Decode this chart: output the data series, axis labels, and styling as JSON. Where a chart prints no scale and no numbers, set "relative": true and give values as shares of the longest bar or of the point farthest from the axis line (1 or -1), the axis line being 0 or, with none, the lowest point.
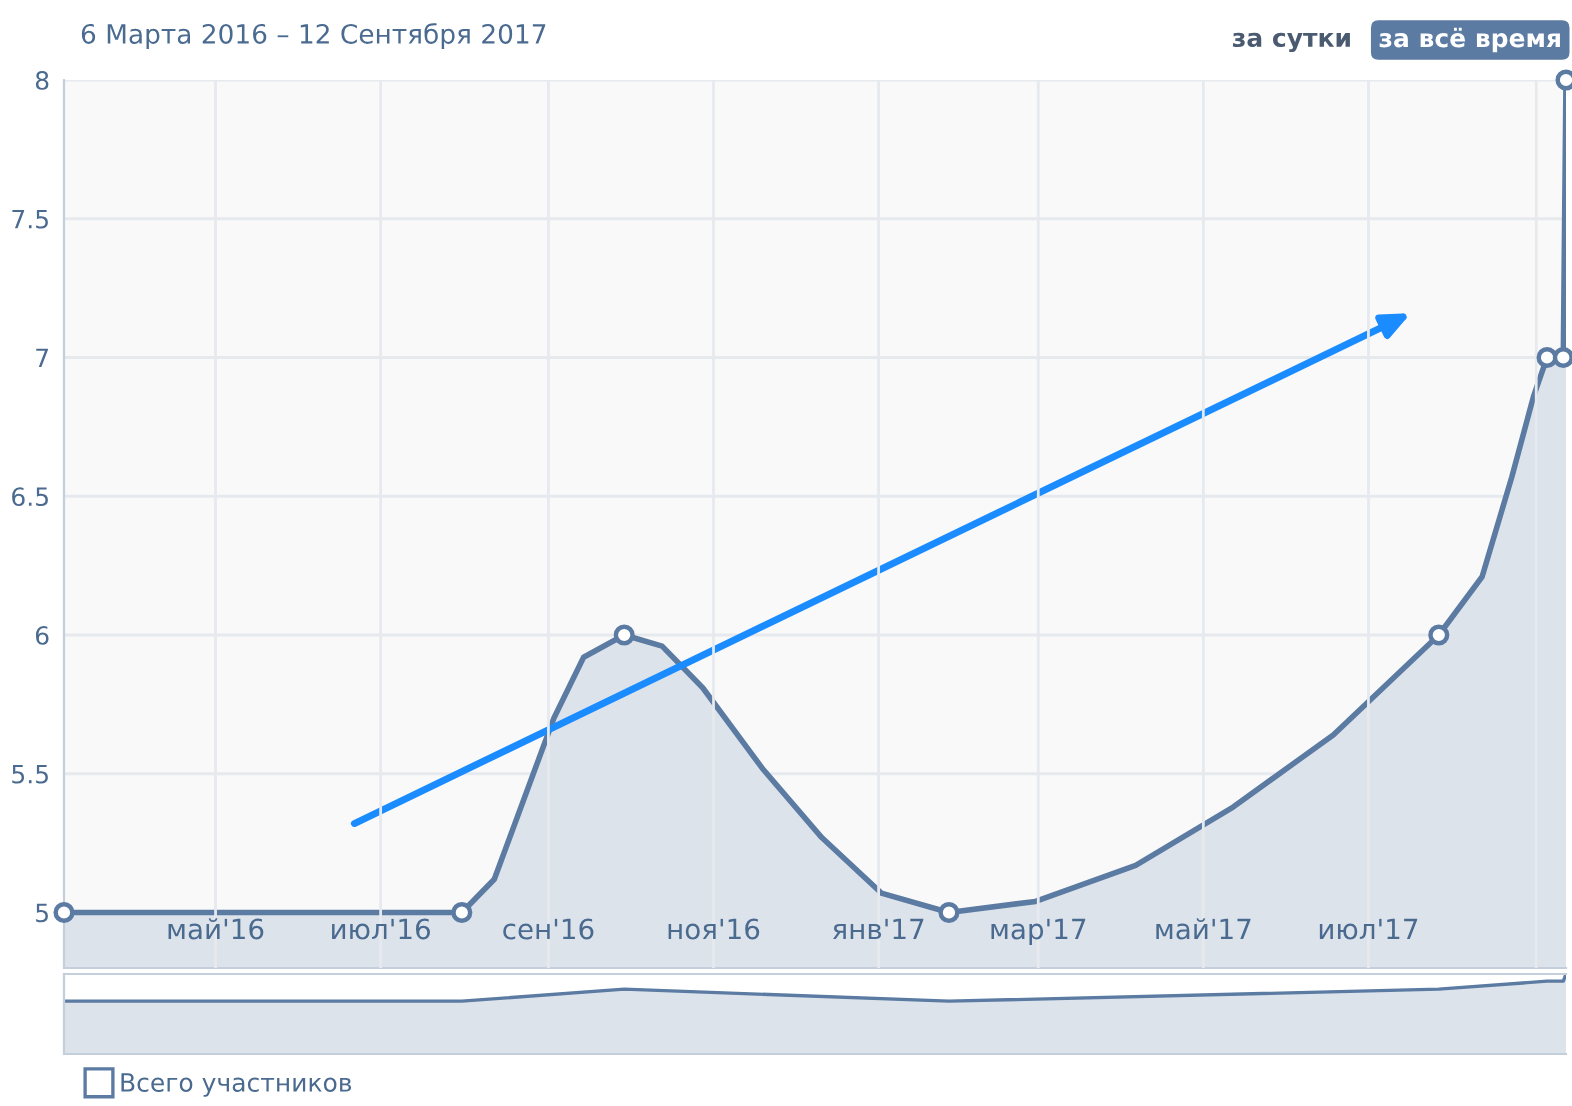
{
  "chart_data": [
    {
      "type": "area",
      "title": "6 Марта 2016 – 12 Сентября 2017",
      "annotations": [
        "за сутки",
        "за всё время"
      ],
      "series": [
        {
          "name": "Всего участников",
          "color": "#5b7ba3",
          "x": [
            "2016-03-06",
            "2016-07-31",
            "2016-08-12",
            "2016-08-23",
            "2016-09-03",
            "2016-09-14",
            "2016-09-29",
            "2016-10-13",
            "2016-10-28",
            "2016-11-19",
            "2016-12-11",
            "2017-01-02",
            "2017-01-27",
            "2017-02-28",
            "2017-04-06",
            "2017-05-12",
            "2017-06-18",
            "2017-07-27",
            "2017-08-12",
            "2017-08-23",
            "2017-08-31",
            "2017-09-05",
            "2017-09-11",
            "2017-09-12"
          ],
          "values": [
            5,
            5,
            5.12,
            5.41,
            5.7,
            5.92,
            6,
            5.96,
            5.81,
            5.52,
            5.27,
            5.07,
            5,
            5.04,
            5.17,
            5.38,
            5.64,
            6,
            6.21,
            6.57,
            6.86,
            7,
            7,
            8
          ]
        },
        {
          "type": "scatter",
          "marker": "circle",
          "color": "#5b7ba3",
          "x": [
            "2016-03-06",
            "2016-07-31",
            "2016-09-29",
            "2017-01-27",
            "2017-07-27",
            "2017-09-05",
            "2017-09-11",
            "2017-09-12"
          ],
          "values": [
            5,
            5,
            6,
            5,
            6,
            7,
            7,
            8
          ]
        }
      ],
      "xlim": [
        "2016-03-06",
        "2017-09-12"
      ],
      "xticks": [
        {
          "value": "2016-05-01",
          "label": "май'16"
        },
        {
          "value": "2016-07-01",
          "label": "июл'16"
        },
        {
          "value": "2016-09-01",
          "label": "сен'16"
        },
        {
          "value": "2016-11-01",
          "label": "ноя'16"
        },
        {
          "value": "2017-01-01",
          "label": "янв'17"
        },
        {
          "value": "2017-03-01",
          "label": "мар'17"
        },
        {
          "value": "2017-05-01",
          "label": "май'17"
        },
        {
          "value": "2017-07-01",
          "label": "июл'17"
        },
        {
          "value": "2017-09-01",
          "label": null
        }
      ],
      "ylim": [
        4.8,
        8
      ],
      "yticks": [
        5,
        5.5,
        6,
        6.5,
        7,
        7.5,
        8
      ],
      "grid": true,
      "legend": "bottom left"
    },
    {
      "type": "area",
      "relative": true,
      "x": [
        "2016-03-06",
        "2016-07-31",
        "2016-09-29",
        "2017-01-27",
        "2017-07-27",
        "2017-09-05",
        "2017-09-11",
        "2017-09-12"
      ],
      "xlim": [
        "2016-03-06",
        "2017-09-12"
      ],
      "series": [
        {
          "color": "#5b7ba3",
          "values": [
            0.66,
            0.66,
            0.81,
            0.66,
            0.81,
            0.91,
            0.91,
            1
          ]
        }
      ]
    }
  ]
}
